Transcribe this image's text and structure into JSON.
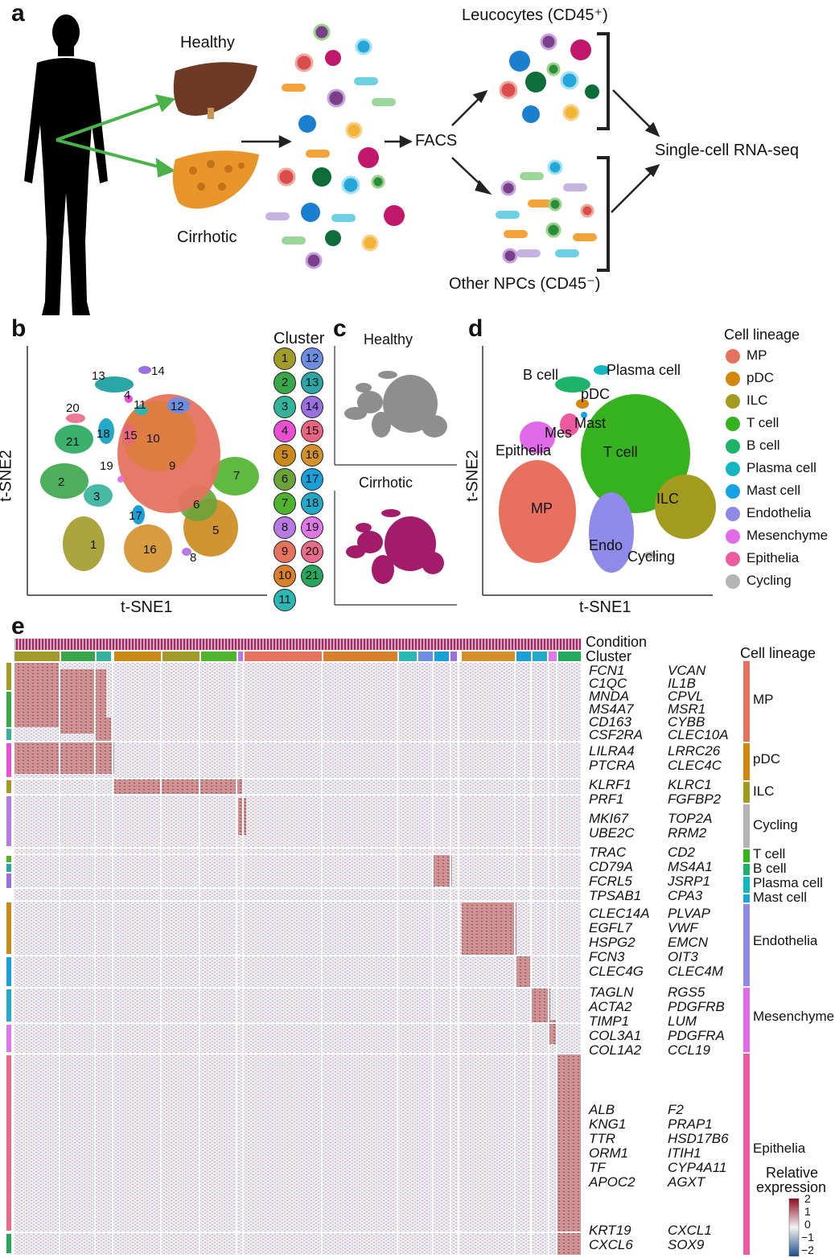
{
  "panels": {
    "a": "a",
    "b": "b",
    "c": "c",
    "d": "d",
    "e": "e"
  },
  "panel_a": {
    "healthy": "Healthy",
    "cirrhotic": "Cirrhotic",
    "facs": "FACS",
    "leucocytes": "Leucocytes (CD45⁺)",
    "other_npcs": "Other NPCs (CD45⁻)",
    "scrnaseq": "Single-cell RNA-seq"
  },
  "panel_b": {
    "xlabel": "t-SNE1",
    "ylabel": "t-SNE2",
    "legend_title": "Cluster",
    "cluster_labels": [
      "1",
      "2",
      "3",
      "4",
      "5",
      "6",
      "7",
      "8",
      "9",
      "10",
      "11",
      "12",
      "13",
      "14",
      "15",
      "16",
      "17",
      "18",
      "19",
      "20",
      "21"
    ],
    "cluster_colors": [
      "#a19b2a",
      "#3aa64a",
      "#34b39a",
      "#e84fd3",
      "#c98a1a",
      "#6aa33a",
      "#4fb32e",
      "#b77ae3",
      "#e5725f",
      "#d9812a",
      "#2bb7b3",
      "#6d8de0",
      "#2aa6a6",
      "#9a6fe0",
      "#e96483",
      "#d4912b",
      "#19a0d8",
      "#24a9c8",
      "#dd78e6",
      "#e86c8a",
      "#25a85d"
    ]
  },
  "panel_c": {
    "healthy": "Healthy",
    "cirrhotic": "Cirrhotic"
  },
  "panel_d": {
    "xlabel": "t-SNE1",
    "ylabel": "t-SNE2",
    "legend_title": "Cell lineage",
    "lineages": [
      {
        "name": "MP",
        "color": "#e8705f"
      },
      {
        "name": "pDC",
        "color": "#d4870f"
      },
      {
        "name": "ILC",
        "color": "#a29b1f"
      },
      {
        "name": "T cell",
        "color": "#35b21e"
      },
      {
        "name": "B cell",
        "color": "#1eb36b"
      },
      {
        "name": "Plasma cell",
        "color": "#14b6bf"
      },
      {
        "name": "Mast cell",
        "color": "#15a3e3"
      },
      {
        "name": "Endothelia",
        "color": "#8f8ae8"
      },
      {
        "name": "Mesenchyme",
        "color": "#e06ae8"
      },
      {
        "name": "Epithelia",
        "color": "#ec5a9f"
      },
      {
        "name": "Cycling",
        "color": "#b4b4b4"
      }
    ],
    "map_labels": [
      "B cell",
      "Plasma cell",
      "pDC",
      "Mes",
      "Mast",
      "Epithelia",
      "T cell",
      "MP",
      "ILC",
      "Endo",
      "Cycling"
    ]
  },
  "panel_e": {
    "condition": "Condition",
    "cluster": "Cluster",
    "cell_lineage_title": "Cell lineage",
    "lineage_labels": [
      "MP",
      "pDC",
      "ILC",
      "Cycling",
      "T cell",
      "B cell",
      "Plasma cell",
      "Mast cell",
      "Endothelia",
      "Mesenchyme",
      "Epithelia"
    ],
    "genes_left": [
      "FCN1",
      "C1QC",
      "MNDA",
      "MS4A7",
      "CD163",
      "CSF2RA",
      "LILRA4",
      "PTCRA",
      "KLRF1",
      "PRF1",
      "MKI67",
      "UBE2C",
      "TRAC",
      "CD79A",
      "FCRL5",
      "TPSAB1",
      "CLEC14A",
      "EGFL7",
      "HSPG2",
      "FCN3",
      "CLEC4G",
      "TAGLN",
      "ACTA2",
      "TIMP1",
      "COL3A1",
      "COL1A2",
      "ALB",
      "KNG1",
      "TTR",
      "ORM1",
      "TF",
      "APOC2",
      "KRT19",
      "CXCL6"
    ],
    "genes_right": [
      "VCAN",
      "IL1B",
      "CPVL",
      "MSR1",
      "CYBB",
      "CLEC10A",
      "LRRC26",
      "CLEC4C",
      "KLRC1",
      "FGFBP2",
      "TOP2A",
      "RRM2",
      "CD2",
      "MS4A1",
      "JSRP1",
      "CPA3",
      "PLVAP",
      "VWF",
      "EMCN",
      "OIT3",
      "CLEC4M",
      "RGS5",
      "PDGFRB",
      "LUM",
      "PDGFRA",
      "CCL19",
      "F2",
      "PRAP1",
      "HSD17B6",
      "ITIH1",
      "CYP4A11",
      "AGXT",
      "CXCL1",
      "SOX9"
    ],
    "legend_title_1": "Relative",
    "legend_title_2": "expression",
    "scale_ticks": [
      "2",
      "1",
      "0",
      "−1",
      "−2"
    ]
  }
}
